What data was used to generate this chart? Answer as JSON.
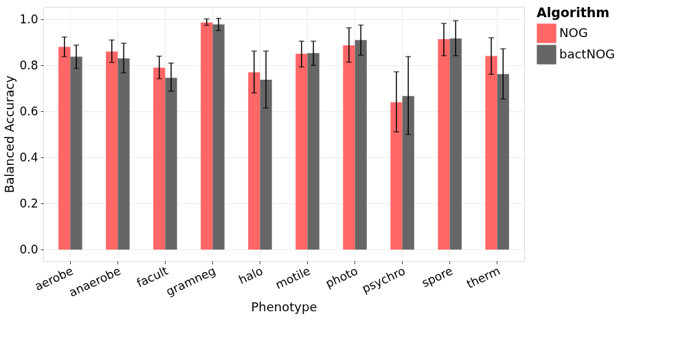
{
  "chart_data": {
    "type": "bar",
    "xlabel": "Phenotype",
    "ylabel": "Balanced Accuracy",
    "legend_title": "Algorithm",
    "categories": [
      "aerobe",
      "anaerobe",
      "facult",
      "gramneg",
      "halo",
      "motile",
      "photo",
      "psychro",
      "spore",
      "therm"
    ],
    "series": [
      {
        "name": "NOG",
        "color": "#ff6666",
        "values": [
          0.88,
          0.86,
          0.79,
          0.986,
          0.77,
          0.85,
          0.887,
          0.64,
          0.914,
          0.841
        ],
        "errors": [
          [
            0.838,
            0.923
          ],
          [
            0.813,
            0.91
          ],
          [
            0.742,
            0.84
          ],
          [
            0.974,
            1.002
          ],
          [
            0.68,
            0.862
          ],
          [
            0.793,
            0.905
          ],
          [
            0.814,
            0.963
          ],
          [
            0.511,
            0.772
          ],
          [
            0.842,
            0.982
          ],
          [
            0.761,
            0.92
          ]
        ]
      },
      {
        "name": "bactNOG",
        "color": "#666666",
        "values": [
          0.838,
          0.83,
          0.746,
          0.978,
          0.738,
          0.853,
          0.91,
          0.667,
          0.917,
          0.762
        ],
        "errors": [
          [
            0.787,
            0.888
          ],
          [
            0.768,
            0.896
          ],
          [
            0.688,
            0.81
          ],
          [
            0.951,
            1.004
          ],
          [
            0.615,
            0.862
          ],
          [
            0.8,
            0.905
          ],
          [
            0.844,
            0.975
          ],
          [
            0.5,
            0.838
          ],
          [
            0.842,
            0.994
          ],
          [
            0.654,
            0.872
          ]
        ]
      }
    ],
    "ylim": [
      -0.05,
      1.054
    ],
    "yticks": [
      {
        "value": 0,
        "label": "0.0"
      },
      {
        "value": 0.2,
        "label": "0.2"
      },
      {
        "value": 0.4,
        "label": "0.4"
      },
      {
        "value": 0.6,
        "label": "0.6"
      },
      {
        "value": 0.8,
        "label": "0.8"
      },
      {
        "value": 1,
        "label": "1.0"
      }
    ],
    "grid": true,
    "legend": "right"
  }
}
